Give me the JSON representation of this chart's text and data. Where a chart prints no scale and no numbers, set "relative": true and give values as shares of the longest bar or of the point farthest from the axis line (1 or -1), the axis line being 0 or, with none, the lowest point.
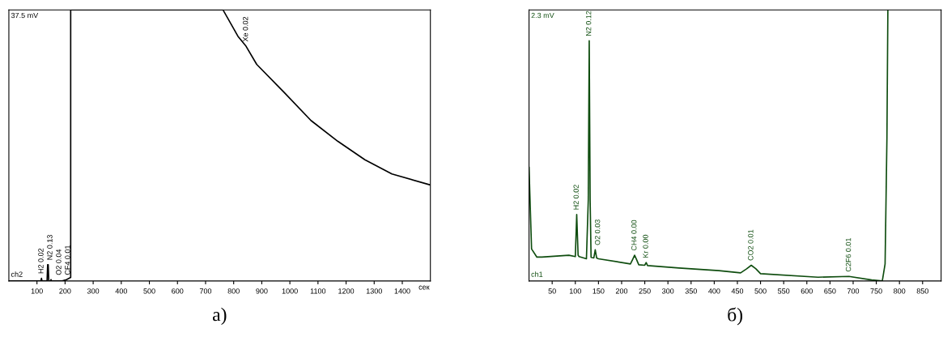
{
  "chart_data": [
    {
      "type": "line",
      "title": "а)",
      "xlabel": "сек",
      "relative": true,
      "grid": false,
      "x": [
        0,
        110,
        114,
        116,
        118,
        136,
        138,
        140,
        142,
        148,
        150,
        152,
        190,
        205,
        220,
        220,
        762,
        815,
        844,
        882,
        979,
        1075,
        1171,
        1267,
        1363,
        1500
      ],
      "series": [
        {
          "color": "#000000",
          "values": [
            0,
            0,
            0,
            0.01,
            0,
            0,
            0.06,
            0.06,
            0,
            0,
            0.005,
            0,
            0,
            0.005,
            0.013,
            1.0,
            1.0,
            0.903,
            0.866,
            0.799,
            0.696,
            0.592,
            0.515,
            0.447,
            0.395,
            0.354
          ]
        }
      ],
      "xlim": [
        0,
        1500
      ],
      "xticks": [
        100,
        200,
        300,
        400,
        500,
        600,
        700,
        800,
        900,
        1000,
        1100,
        1200,
        1300,
        1400
      ],
      "annotations": [
        "37.5 mV",
        "ch2",
        {
          "text": "H2 0.02",
          "x": 116,
          "y": 0.01
        },
        {
          "text": "N2 0.13",
          "x": 140,
          "y": 0.06
        },
        {
          "text": "O2 0.04",
          "x": 150,
          "y": 0.005
        },
        {
          "text": "CF4 0.01",
          "x": 208,
          "y": 0.005
        },
        {
          "text": "Xe 0.02",
          "x": 844,
          "y": 0.866
        }
      ]
    },
    {
      "type": "line",
      "title": "б)",
      "relative": true,
      "grid": false,
      "x": [
        0,
        5.5,
        17,
        28,
        86,
        100,
        103,
        106,
        108,
        124,
        128,
        130,
        132,
        134,
        140,
        143,
        146,
        150,
        219,
        224,
        228,
        232,
        237,
        250,
        253,
        256,
        324,
        410,
        457,
        470,
        480,
        490,
        500,
        624,
        691,
        740,
        763,
        769,
        773,
        775
      ],
      "series": [
        {
          "color": "#0f4d0f",
          "values": [
            0.42,
            0.118,
            0.088,
            0.088,
            0.095,
            0.09,
            0.245,
            0.095,
            0.09,
            0.082,
            0.3,
            0.886,
            0.3,
            0.087,
            0.085,
            0.115,
            0.085,
            0.082,
            0.063,
            0.08,
            0.095,
            0.08,
            0.06,
            0.058,
            0.068,
            0.057,
            0.048,
            0.038,
            0.03,
            0.045,
            0.058,
            0.045,
            0.027,
            0.014,
            0.017,
            0.004,
            0,
            0.063,
            0.529,
            1.0
          ]
        }
      ],
      "xlim": [
        0,
        890
      ],
      "xticks": [
        50,
        100,
        150,
        200,
        250,
        300,
        350,
        400,
        450,
        500,
        550,
        600,
        650,
        700,
        750,
        800,
        850
      ],
      "annotations": [
        "2.3 mV",
        "ch1",
        {
          "text": "H2 0.02",
          "x": 103,
          "y": 0.245
        },
        {
          "text": "N2 0.12",
          "x": 130,
          "y": 0.886
        },
        {
          "text": "O2 0.03",
          "x": 143,
          "y": 0.115
        },
        {
          "text": "CH4 0.00",
          "x": 228,
          "y": 0.095
        },
        {
          "text": "Kr 0.00",
          "x": 253,
          "y": 0.068
        },
        {
          "text": "CO2 0.01",
          "x": 480,
          "y": 0.058
        },
        {
          "text": "C2F6 0.01",
          "x": 691,
          "y": 0.017
        }
      ]
    }
  ]
}
